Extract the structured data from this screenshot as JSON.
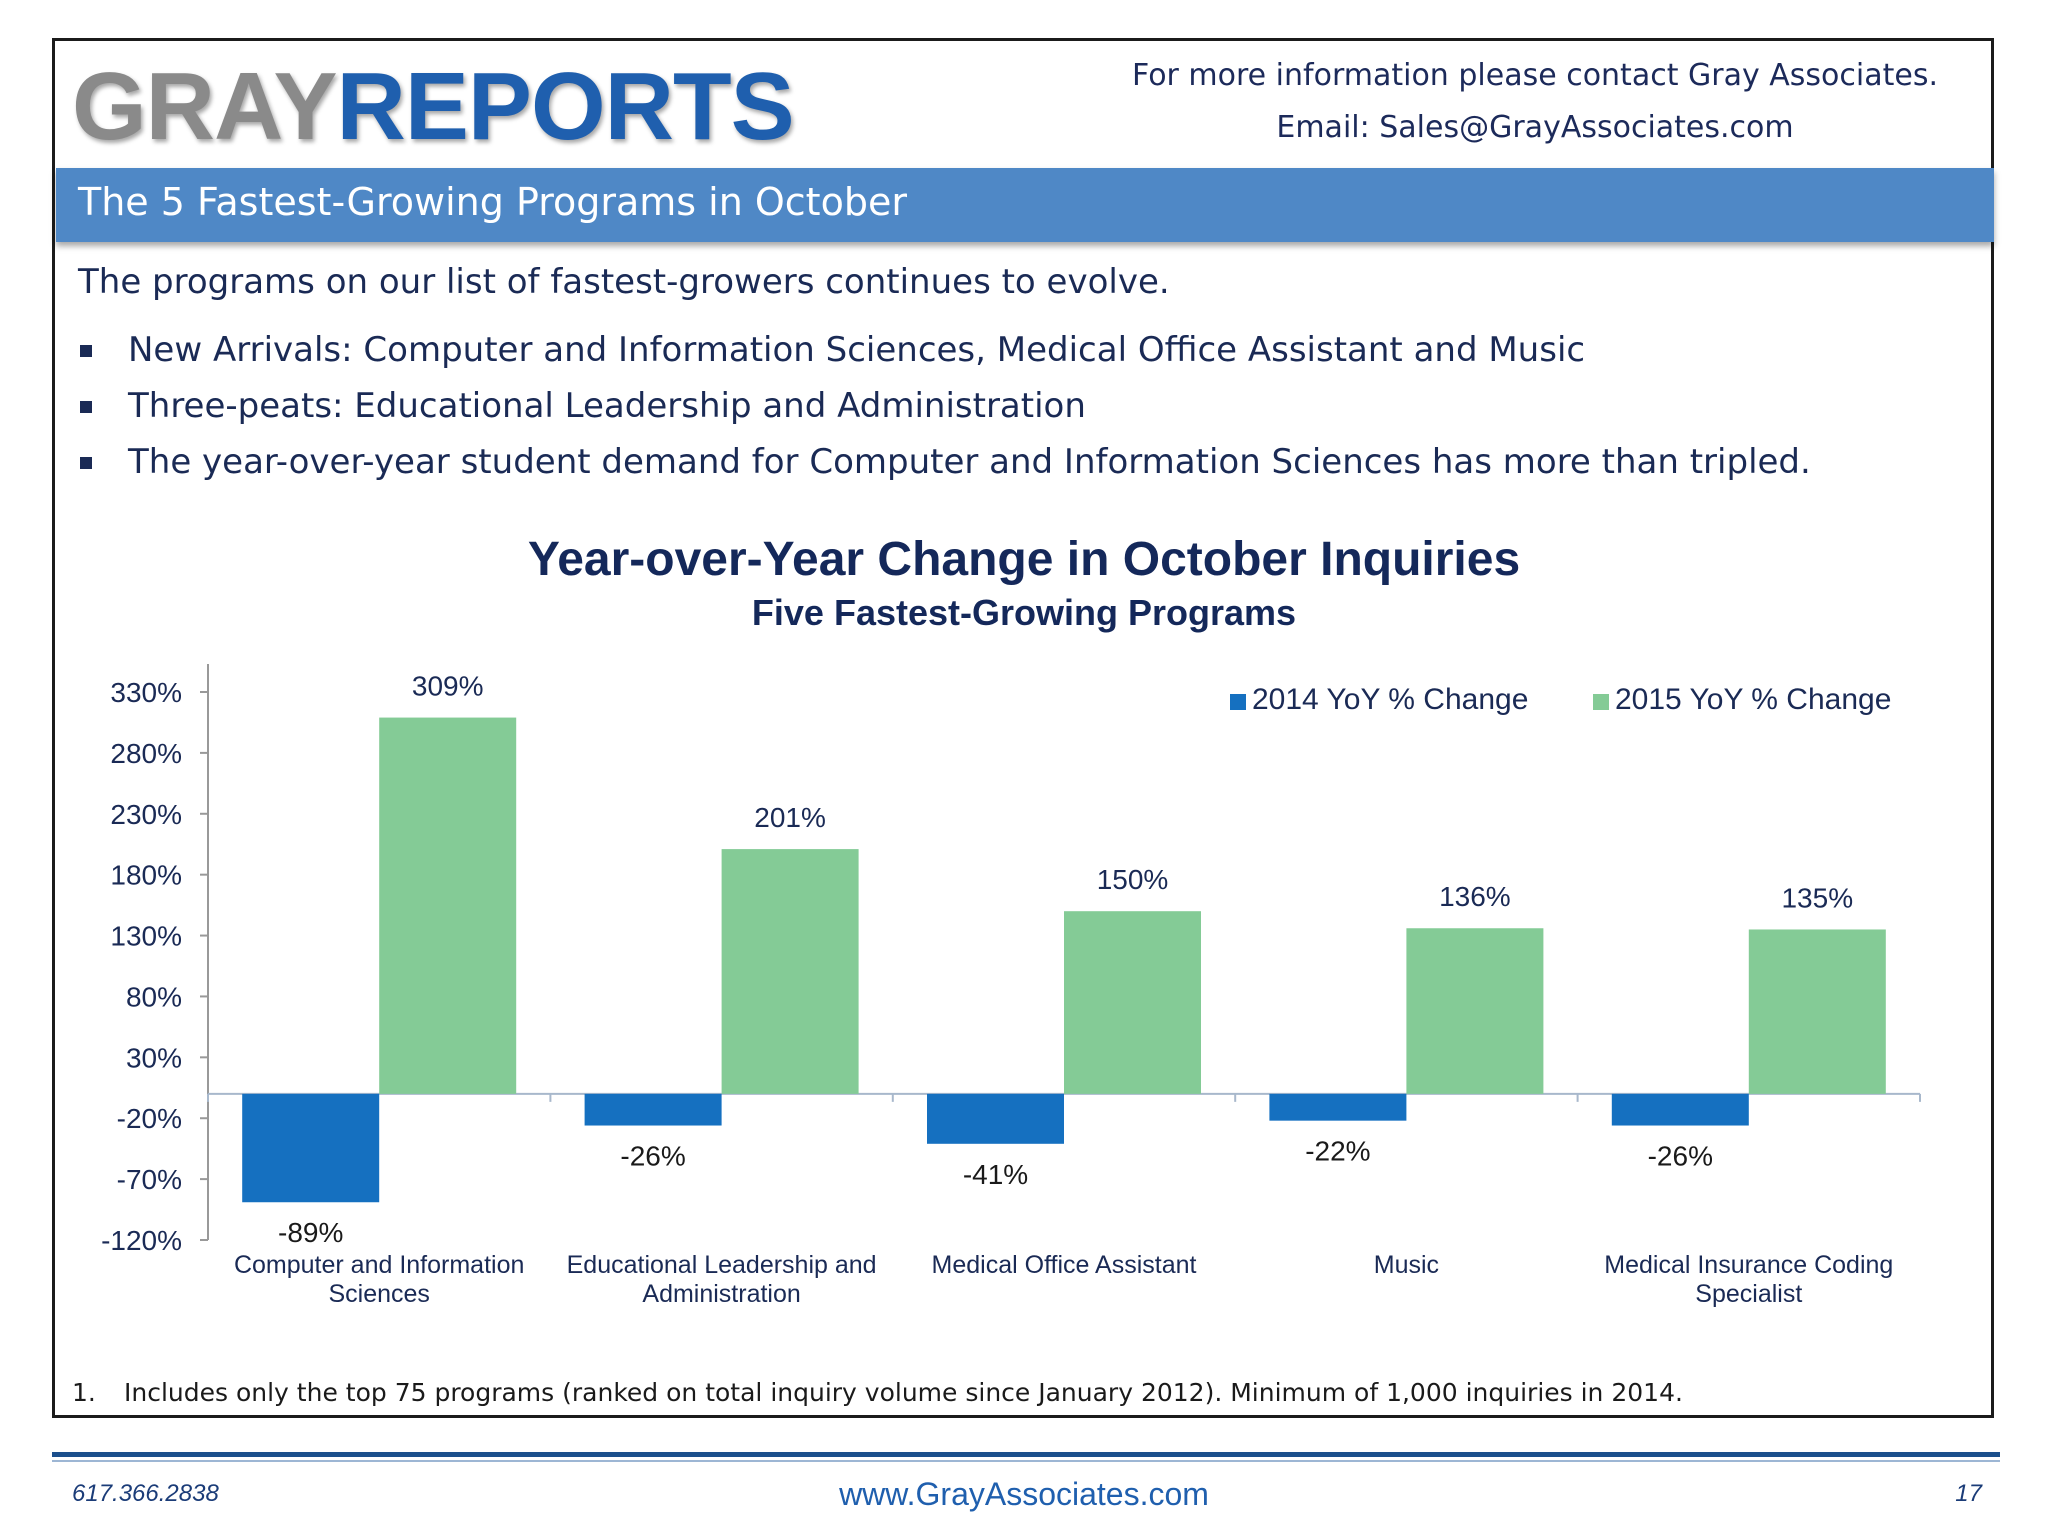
{
  "header": {
    "logo_gray": "GRAY",
    "logo_reports": "REPORTS",
    "contact_line1": "For more information please contact Gray Associates.",
    "contact_line2": "Email:  Sales@GrayAssociates.com"
  },
  "banner": {
    "title": "The 5 Fastest-Growing Programs in October"
  },
  "intro": "The programs on our list of fastest-growers continues to evolve.",
  "bullets": [
    "New Arrivals:  Computer and Information Sciences, Medical Office Assistant and Music",
    "Three-peats:  Educational Leadership and Administration",
    "The year-over-year student demand for Computer and Information Sciences has more than tripled."
  ],
  "chart_data": {
    "type": "bar",
    "title": "Year-over-Year Change in October Inquiries",
    "subtitle": "Five Fastest-Growing Programs",
    "categories": [
      [
        "Computer and Information",
        "Sciences"
      ],
      [
        "Educational Leadership and",
        "Administration"
      ],
      [
        "Medical Office Assistant"
      ],
      [
        "Music"
      ],
      [
        "Medical Insurance Coding",
        "Specialist"
      ]
    ],
    "series": [
      {
        "name": "2014 YoY % Change",
        "color": "#1570c0",
        "values": [
          -89,
          -26,
          -41,
          -22,
          -26
        ],
        "labels": [
          "-89%",
          "-26%",
          "-41%",
          "-22%",
          "-26%"
        ]
      },
      {
        "name": "2015 YoY % Change",
        "color": "#84cb96",
        "values": [
          309,
          201,
          150,
          136,
          135
        ],
        "labels": [
          "309%",
          "201%",
          "150%",
          "136%",
          "135%"
        ]
      }
    ],
    "yticks": [
      330,
      280,
      230,
      180,
      130,
      80,
      30,
      -20,
      -70,
      -120
    ],
    "ytick_labels": [
      "330%",
      "280%",
      "230%",
      "180%",
      "130%",
      "80%",
      "30%",
      "-20%",
      "-70%",
      "-120%"
    ],
    "ylim": [
      -120,
      330
    ],
    "legend": "top-right",
    "grid": false
  },
  "footnote": {
    "number": "1.",
    "text": "Includes only the top 75 programs (ranked on total inquiry volume since January 2012).  Minimum of 1,000 inquiries in 2014."
  },
  "footer": {
    "phone": "617.366.2838",
    "website": "www.GrayAssociates.com",
    "page": "17"
  }
}
